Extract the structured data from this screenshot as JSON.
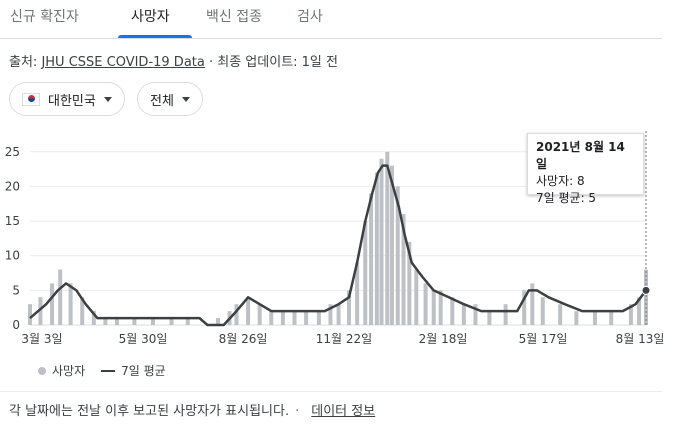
{
  "tabs": [
    {
      "label": "신규 확진자"
    },
    {
      "label": "사망자"
    },
    {
      "label": "백신 접종"
    },
    {
      "label": "검사"
    }
  ],
  "source": {
    "prefix": "출처: ",
    "link": "JHU CSSE COVID-19 Data",
    "suffix": " · 최종 업데이트: 1일 전"
  },
  "filters": {
    "country": "대한민국",
    "range": "전체"
  },
  "tooltip": {
    "date": "2021년 8월 14일",
    "deaths": "사망자: 8",
    "avg": "7일 평균: 5"
  },
  "legend": {
    "bars": "사망자",
    "line": "7일 평균"
  },
  "footer": {
    "note": "각 날짜에는 전날 이후 보고된 사망자가 표시됩니다.",
    "separator": "·",
    "link": "데이터 정보"
  },
  "colors": {
    "bars": "#bdc1c6",
    "line": "#3c4043",
    "grid": "#ebebeb",
    "axis_text": "#3c4043"
  },
  "chart_data": {
    "type": "bar",
    "title": "",
    "xlabel": "",
    "ylabel": "",
    "ylim": [
      0,
      28
    ],
    "y_ticks": [
      0,
      5,
      10,
      15,
      20,
      25
    ],
    "x_ticks": [
      "3월 3일",
      "5월 30일",
      "8월 26일",
      "11월 22일",
      "2월 18일",
      "5월 17일",
      "8월 13일"
    ],
    "x_range": [
      "2020-03-01",
      "2021-08-14"
    ],
    "grid": true,
    "legend_position": "bottom-left",
    "series": [
      {
        "name": "사망자",
        "type": "bar",
        "points": [
          [
            "2020-03-01",
            3
          ],
          [
            "2020-03-10",
            4
          ],
          [
            "2020-03-20",
            6
          ],
          [
            "2020-03-27",
            8
          ],
          [
            "2020-04-05",
            6
          ],
          [
            "2020-04-15",
            4
          ],
          [
            "2020-04-25",
            2
          ],
          [
            "2020-05-05",
            1
          ],
          [
            "2020-05-15",
            1
          ],
          [
            "2020-05-30",
            1
          ],
          [
            "2020-06-15",
            1
          ],
          [
            "2020-07-01",
            1
          ],
          [
            "2020-07-15",
            1
          ],
          [
            "2020-08-01",
            0
          ],
          [
            "2020-08-10",
            1
          ],
          [
            "2020-08-20",
            2
          ],
          [
            "2020-08-26",
            3
          ],
          [
            "2020-09-05",
            4
          ],
          [
            "2020-09-15",
            3
          ],
          [
            "2020-09-25",
            2
          ],
          [
            "2020-10-05",
            2
          ],
          [
            "2020-10-15",
            2
          ],
          [
            "2020-10-25",
            2
          ],
          [
            "2020-11-05",
            2
          ],
          [
            "2020-11-15",
            3
          ],
          [
            "2020-11-22",
            3
          ],
          [
            "2020-12-01",
            5
          ],
          [
            "2020-12-08",
            9
          ],
          [
            "2020-12-15",
            15
          ],
          [
            "2020-12-20",
            19
          ],
          [
            "2020-12-25",
            22
          ],
          [
            "2020-12-29",
            24
          ],
          [
            "2021-01-03",
            25
          ],
          [
            "2021-01-07",
            23
          ],
          [
            "2021-01-12",
            20
          ],
          [
            "2021-01-17",
            16
          ],
          [
            "2021-01-22",
            12
          ],
          [
            "2021-01-28",
            8
          ],
          [
            "2021-02-05",
            6
          ],
          [
            "2021-02-12",
            5
          ],
          [
            "2021-02-18",
            5
          ],
          [
            "2021-02-28",
            4
          ],
          [
            "2021-03-10",
            3
          ],
          [
            "2021-03-20",
            3
          ],
          [
            "2021-04-01",
            2
          ],
          [
            "2021-04-15",
            3
          ],
          [
            "2021-05-01",
            5
          ],
          [
            "2021-05-08",
            6
          ],
          [
            "2021-05-17",
            4
          ],
          [
            "2021-06-01",
            3
          ],
          [
            "2021-06-15",
            2
          ],
          [
            "2021-07-01",
            2
          ],
          [
            "2021-07-15",
            2
          ],
          [
            "2021-08-01",
            3
          ],
          [
            "2021-08-08",
            4
          ],
          [
            "2021-08-14",
            8
          ]
        ]
      },
      {
        "name": "7일 평균",
        "type": "line",
        "points": [
          [
            "2020-03-01",
            1
          ],
          [
            "2020-03-15",
            3
          ],
          [
            "2020-03-25",
            5
          ],
          [
            "2020-04-01",
            6
          ],
          [
            "2020-04-10",
            5
          ],
          [
            "2020-04-18",
            3
          ],
          [
            "2020-04-28",
            1
          ],
          [
            "2020-05-30",
            1
          ],
          [
            "2020-06-30",
            1
          ],
          [
            "2020-07-25",
            1
          ],
          [
            "2020-08-01",
            0
          ],
          [
            "2020-08-15",
            0
          ],
          [
            "2020-08-26",
            2
          ],
          [
            "2020-09-05",
            4
          ],
          [
            "2020-09-15",
            3
          ],
          [
            "2020-09-25",
            2
          ],
          [
            "2020-10-15",
            2
          ],
          [
            "2020-11-10",
            2
          ],
          [
            "2020-11-22",
            3
          ],
          [
            "2020-12-01",
            4
          ],
          [
            "2020-12-08",
            9
          ],
          [
            "2020-12-15",
            15
          ],
          [
            "2020-12-21",
            19
          ],
          [
            "2020-12-26",
            22
          ],
          [
            "2020-12-30",
            23
          ],
          [
            "2021-01-03",
            23
          ],
          [
            "2021-01-08",
            20
          ],
          [
            "2021-01-13",
            17
          ],
          [
            "2021-01-18",
            13
          ],
          [
            "2021-01-24",
            9
          ],
          [
            "2021-02-02",
            7
          ],
          [
            "2021-02-12",
            5
          ],
          [
            "2021-02-25",
            4
          ],
          [
            "2021-03-10",
            3
          ],
          [
            "2021-03-25",
            2
          ],
          [
            "2021-04-10",
            2
          ],
          [
            "2021-04-25",
            2
          ],
          [
            "2021-05-05",
            5
          ],
          [
            "2021-05-12",
            5
          ],
          [
            "2021-05-22",
            4
          ],
          [
            "2021-06-05",
            3
          ],
          [
            "2021-06-20",
            2
          ],
          [
            "2021-07-10",
            2
          ],
          [
            "2021-07-25",
            2
          ],
          [
            "2021-08-05",
            3
          ],
          [
            "2021-08-14",
            5
          ]
        ]
      }
    ]
  }
}
